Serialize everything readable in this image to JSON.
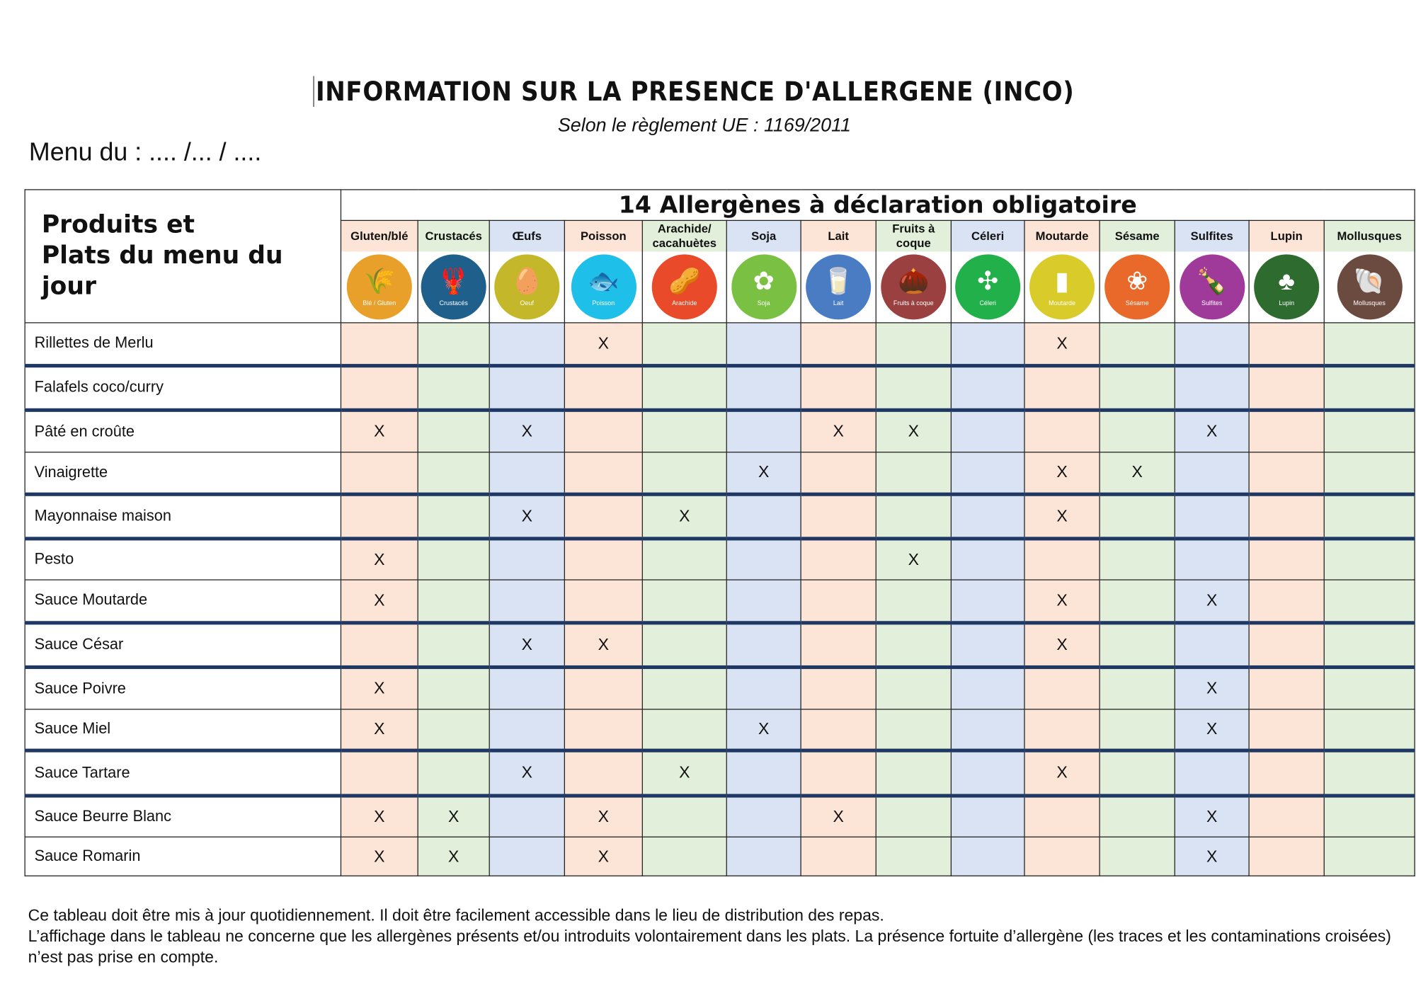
{
  "header": {
    "title": "INFORMATION SUR LA PRESENCE D'ALLERGENE (INCO)",
    "subtitle": "Selon le règlement UE : 1169/2011",
    "menu_date": "Menu du : .... /... / ...."
  },
  "table": {
    "corner_label_line1": "Produits et",
    "corner_label_line2": "Plats du menu du jour",
    "band_title": "14 Allergènes à déclaration obligatoire",
    "allergens": [
      {
        "name": "Gluten/blé",
        "icon_label": "Blé / Gluten",
        "icon": "wheat-icon",
        "color": "#e8a02a",
        "tint": "p",
        "glyph": "🌾"
      },
      {
        "name": "Crustacés",
        "icon_label": "Crustacés",
        "icon": "lobster-icon",
        "color": "#1f5f8b",
        "tint": "gr",
        "glyph": "🦞"
      },
      {
        "name": "Œufs",
        "icon_label": "Oeuf",
        "icon": "egg-icon",
        "color": "#c4b82a",
        "tint": "b",
        "glyph": "🥚"
      },
      {
        "name": "Poisson",
        "icon_label": "Poisson",
        "icon": "fish-icon",
        "color": "#1ebfe8",
        "tint": "p",
        "glyph": "🐟"
      },
      {
        "name": "Arachide/ cacahuètes",
        "icon_label": "Arachide",
        "icon": "peanut-icon",
        "color": "#e84a2a",
        "tint": "gr",
        "glyph": "🥜"
      },
      {
        "name": "Soja",
        "icon_label": "Soja",
        "icon": "soy-icon",
        "color": "#7ac143",
        "tint": "b",
        "glyph": "✿"
      },
      {
        "name": "Lait",
        "icon_label": "Lait",
        "icon": "milk-icon",
        "color": "#4a7cc4",
        "tint": "p",
        "glyph": "🥛"
      },
      {
        "name": "Fruits à coque",
        "icon_label": "Fruits à coque",
        "icon": "nuts-icon",
        "color": "#9b4040",
        "tint": "gr",
        "glyph": "🌰"
      },
      {
        "name": "Céleri",
        "icon_label": "Céleri",
        "icon": "celery-icon",
        "color": "#22b04a",
        "tint": "b",
        "glyph": "✣"
      },
      {
        "name": "Moutarde",
        "icon_label": "Moutarde",
        "icon": "mustard-icon",
        "color": "#d9cc2a",
        "tint": "p",
        "glyph": "▮"
      },
      {
        "name": "Sésame",
        "icon_label": "Sésame",
        "icon": "sesame-icon",
        "color": "#e8692a",
        "tint": "gr",
        "glyph": "❀"
      },
      {
        "name": "Sulfites",
        "icon_label": "Sulfites",
        "icon": "wine-bottle-icon",
        "color": "#a03a9a",
        "tint": "b",
        "glyph": "🍾"
      },
      {
        "name": "Lupin",
        "icon_label": "Lupin",
        "icon": "lupin-icon",
        "color": "#2e6b2e",
        "tint": "p",
        "glyph": "♣"
      },
      {
        "name": "Mollusques",
        "icon_label": "Mollusques",
        "icon": "shell-icon",
        "color": "#6b4a40",
        "tint": "gr",
        "glyph": "🐚"
      }
    ],
    "mark": "X",
    "rows": [
      {
        "name": "Rillettes de Merlu",
        "marks": [
          "Poisson",
          "Moutarde"
        ]
      },
      {
        "name": "Falafels  coco/curry",
        "marks": []
      },
      {
        "name": "Pâté en croûte",
        "marks": [
          "Gluten/blé",
          "Œufs",
          "Lait",
          "Fruits à coque",
          "Sulfites"
        ]
      },
      {
        "name": "Vinaigrette",
        "marks": [
          "Soja",
          "Moutarde",
          "Sésame"
        ]
      },
      {
        "name": "Mayonnaise maison",
        "marks": [
          "Œufs",
          "Arachide/ cacahuètes",
          "Moutarde"
        ]
      },
      {
        "name": "Pesto",
        "marks": [
          "Gluten/blé",
          "Fruits à coque"
        ]
      },
      {
        "name": "Sauce Moutarde",
        "marks": [
          "Gluten/blé",
          "Moutarde",
          "Sulfites"
        ]
      },
      {
        "name": "Sauce César",
        "marks": [
          "Œufs",
          "Poisson",
          "Moutarde"
        ]
      },
      {
        "name": "Sauce Poivre",
        "marks": [
          "Gluten/blé",
          "Sulfites"
        ]
      },
      {
        "name": "Sauce Miel",
        "marks": [
          "Gluten/blé",
          "Soja",
          "Sulfites"
        ]
      },
      {
        "name": "Sauce Tartare",
        "marks": [
          "Œufs",
          "Arachide/ cacahuètes",
          "Moutarde"
        ]
      },
      {
        "name": "Sauce Beurre Blanc",
        "marks": [
          "Gluten/blé",
          "Crustacés",
          "Poisson",
          "Lait",
          "Sulfites"
        ]
      },
      {
        "name": "Sauce Romarin",
        "marks": [
          "Gluten/blé",
          "Crustacés",
          "Poisson",
          "Sulfites"
        ]
      }
    ]
  },
  "notes": {
    "line1": "Ce tableau doit être mis à jour quotidiennement. Il doit être facilement accessible dans le lieu de distribution des repas.",
    "line2": "L’affichage dans le tableau ne concerne que les allergènes présents et/ou introduits volontairement dans les plats. La présence fortuite d’allergène (les traces et les contaminations croisées) n’est pas prise en compte."
  }
}
